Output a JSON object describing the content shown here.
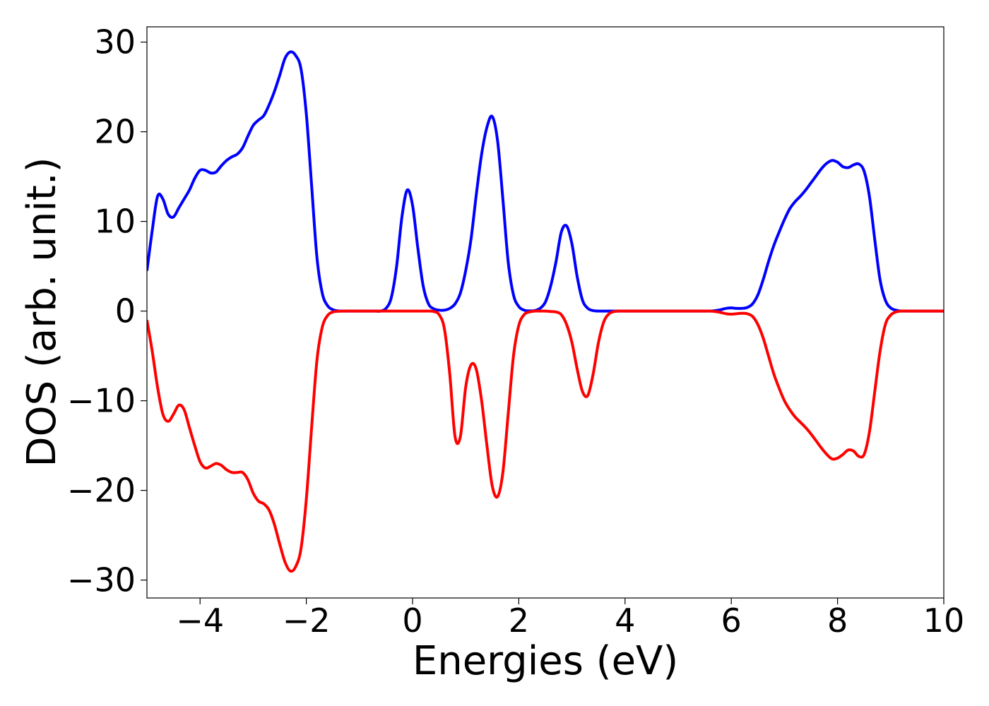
{
  "chart_data": {
    "type": "line",
    "x_label": "Energies (eV)",
    "y_label": "DOS (arb. unit.)",
    "xlim": [
      -5,
      10
    ],
    "ylim": [
      -32,
      31.7
    ],
    "xticks": [
      {
        "value": -4,
        "label": "−4"
      },
      {
        "value": -2,
        "label": "−2"
      },
      0,
      2,
      4,
      6,
      8,
      10
    ],
    "yticks": [
      {
        "value": -30,
        "label": "−30"
      },
      {
        "value": -20,
        "label": "−20"
      },
      {
        "value": -10,
        "label": "−10"
      },
      0,
      10,
      20,
      30
    ],
    "x": [
      -5,
      -4.9,
      -4.8,
      -4.7,
      -4.6,
      -4.5,
      -4.4,
      -4.3,
      -4.2,
      -4.1,
      -4,
      -3.9,
      -3.8,
      -3.7,
      -3.6,
      -3.5,
      -3.4,
      -3.3,
      -3.2,
      -3.1,
      -3,
      -2.9,
      -2.8,
      -2.7,
      -2.6,
      -2.5,
      -2.4,
      -2.3,
      -2.2,
      -2.1,
      -2,
      -1.9,
      -1.8,
      -1.7,
      -1.6,
      -1.5,
      -1.4,
      -1.3,
      -1.2,
      -1.1,
      -1,
      -0.9,
      -0.8,
      -0.7,
      -0.6,
      -0.5,
      -0.4,
      -0.3,
      -0.2,
      -0.1,
      0,
      0.1,
      0.2,
      0.3,
      0.4,
      0.5,
      0.6,
      0.7,
      0.8,
      0.9,
      1,
      1.1,
      1.2,
      1.3,
      1.4,
      1.5,
      1.6,
      1.7,
      1.8,
      1.9,
      2,
      2.1,
      2.2,
      2.3,
      2.4,
      2.5,
      2.6,
      2.7,
      2.8,
      2.9,
      3,
      3.1,
      3.2,
      3.3,
      3.4,
      3.5,
      3.6,
      3.7,
      3.8,
      3.9,
      4,
      4.1,
      4.2,
      4.3,
      4.4,
      4.5,
      4.6,
      4.7,
      4.8,
      4.9,
      5,
      5.1,
      5.2,
      5.3,
      5.4,
      5.5,
      5.6,
      5.7,
      5.8,
      5.9,
      6,
      6.1,
      6.2,
      6.3,
      6.4,
      6.5,
      6.6,
      6.7,
      6.8,
      6.9,
      7,
      7.1,
      7.2,
      7.3,
      7.4,
      7.5,
      7.6,
      7.7,
      7.8,
      7.9,
      8,
      8.1,
      8.2,
      8.3,
      8.4,
      8.5,
      8.6,
      8.7,
      8.8,
      8.9,
      9,
      9.1,
      9.2,
      9.3,
      9.4,
      9.5,
      9.6,
      9.7,
      9.8,
      9.9,
      10
    ],
    "series": [
      {
        "color": "#0000ff",
        "values": [
          4.5,
          9,
          12.8,
          12.5,
          10.8,
          10.5,
          11.5,
          12.5,
          13.5,
          14.8,
          15.7,
          15.7,
          15.4,
          15.5,
          16.2,
          16.8,
          17.2,
          17.5,
          18.2,
          19.5,
          20.7,
          21.3,
          21.8,
          23,
          24.5,
          26.3,
          28.2,
          28.9,
          28.5,
          27,
          22,
          14,
          6,
          2,
          0.6,
          0.15,
          0.02,
          0,
          0,
          0,
          0,
          0,
          0,
          0,
          0,
          0.3,
          1.5,
          5,
          10.5,
          13.5,
          11.8,
          7,
          2.8,
          0.8,
          0.25,
          0.1,
          0.1,
          0.3,
          0.8,
          2,
          4.5,
          8,
          13,
          17.5,
          20.5,
          21.7,
          19,
          12.5,
          5.5,
          1.8,
          0.5,
          0.1,
          0.02,
          0.05,
          0.3,
          1,
          2.8,
          5.5,
          8.8,
          9.5,
          7.5,
          3.8,
          1.2,
          0.3,
          0.05,
          0,
          0,
          0,
          0,
          0,
          0,
          0,
          0,
          0,
          0,
          0,
          0,
          0,
          0,
          0,
          0,
          0,
          0,
          0,
          0,
          0,
          0,
          0.05,
          0.15,
          0.3,
          0.35,
          0.3,
          0.3,
          0.4,
          0.8,
          1.8,
          3.5,
          5.5,
          7.3,
          8.8,
          10.2,
          11.4,
          12.2,
          12.8,
          13.5,
          14.3,
          15.1,
          15.9,
          16.5,
          16.8,
          16.6,
          16.1,
          16,
          16.3,
          16.4,
          15.6,
          12.8,
          8,
          3.5,
          1.2,
          0.35,
          0.1,
          0,
          0,
          0,
          0,
          0,
          0,
          0,
          0,
          0
        ]
      },
      {
        "color": "#ff0000",
        "values": [
          -1,
          -4.5,
          -8.5,
          -11.5,
          -12.3,
          -11.5,
          -10.5,
          -11,
          -13,
          -15,
          -16.8,
          -17.5,
          -17.3,
          -17,
          -17.2,
          -17.7,
          -18,
          -18,
          -18,
          -18.8,
          -20.3,
          -21.2,
          -21.5,
          -22.2,
          -23.8,
          -26,
          -28,
          -29,
          -28.5,
          -26.5,
          -21,
          -13,
          -5.5,
          -1.8,
          -0.5,
          -0.1,
          -0.02,
          0,
          0,
          0,
          0,
          0,
          0,
          0,
          0,
          0,
          0,
          0,
          0,
          0,
          0,
          0,
          0,
          0,
          -0.05,
          -0.4,
          -2,
          -7,
          -14,
          -14,
          -8.5,
          -6,
          -6.5,
          -10,
          -15,
          -19.5,
          -20.7,
          -18,
          -11.5,
          -5,
          -1.6,
          -0.4,
          -0.1,
          0,
          0,
          0,
          -0.05,
          -0.1,
          -0.4,
          -1.5,
          -3.5,
          -6.5,
          -9,
          -9.4,
          -7,
          -3.5,
          -1.2,
          -0.3,
          -0.05,
          0,
          0,
          0,
          0,
          0,
          0,
          0,
          0,
          0,
          0,
          0,
          0,
          0,
          0,
          0,
          0,
          0,
          0,
          -0.05,
          -0.15,
          -0.3,
          -0.35,
          -0.3,
          -0.25,
          -0.3,
          -0.6,
          -1.5,
          -3,
          -5,
          -7,
          -8.6,
          -10,
          -11,
          -11.8,
          -12.4,
          -13,
          -13.7,
          -14.5,
          -15.3,
          -16,
          -16.5,
          -16.4,
          -16,
          -15.5,
          -15.6,
          -16.2,
          -16,
          -13.5,
          -9,
          -4.5,
          -1.5,
          -0.45,
          -0.1,
          0,
          0,
          0,
          0,
          0,
          0,
          0,
          0,
          0
        ]
      }
    ]
  }
}
